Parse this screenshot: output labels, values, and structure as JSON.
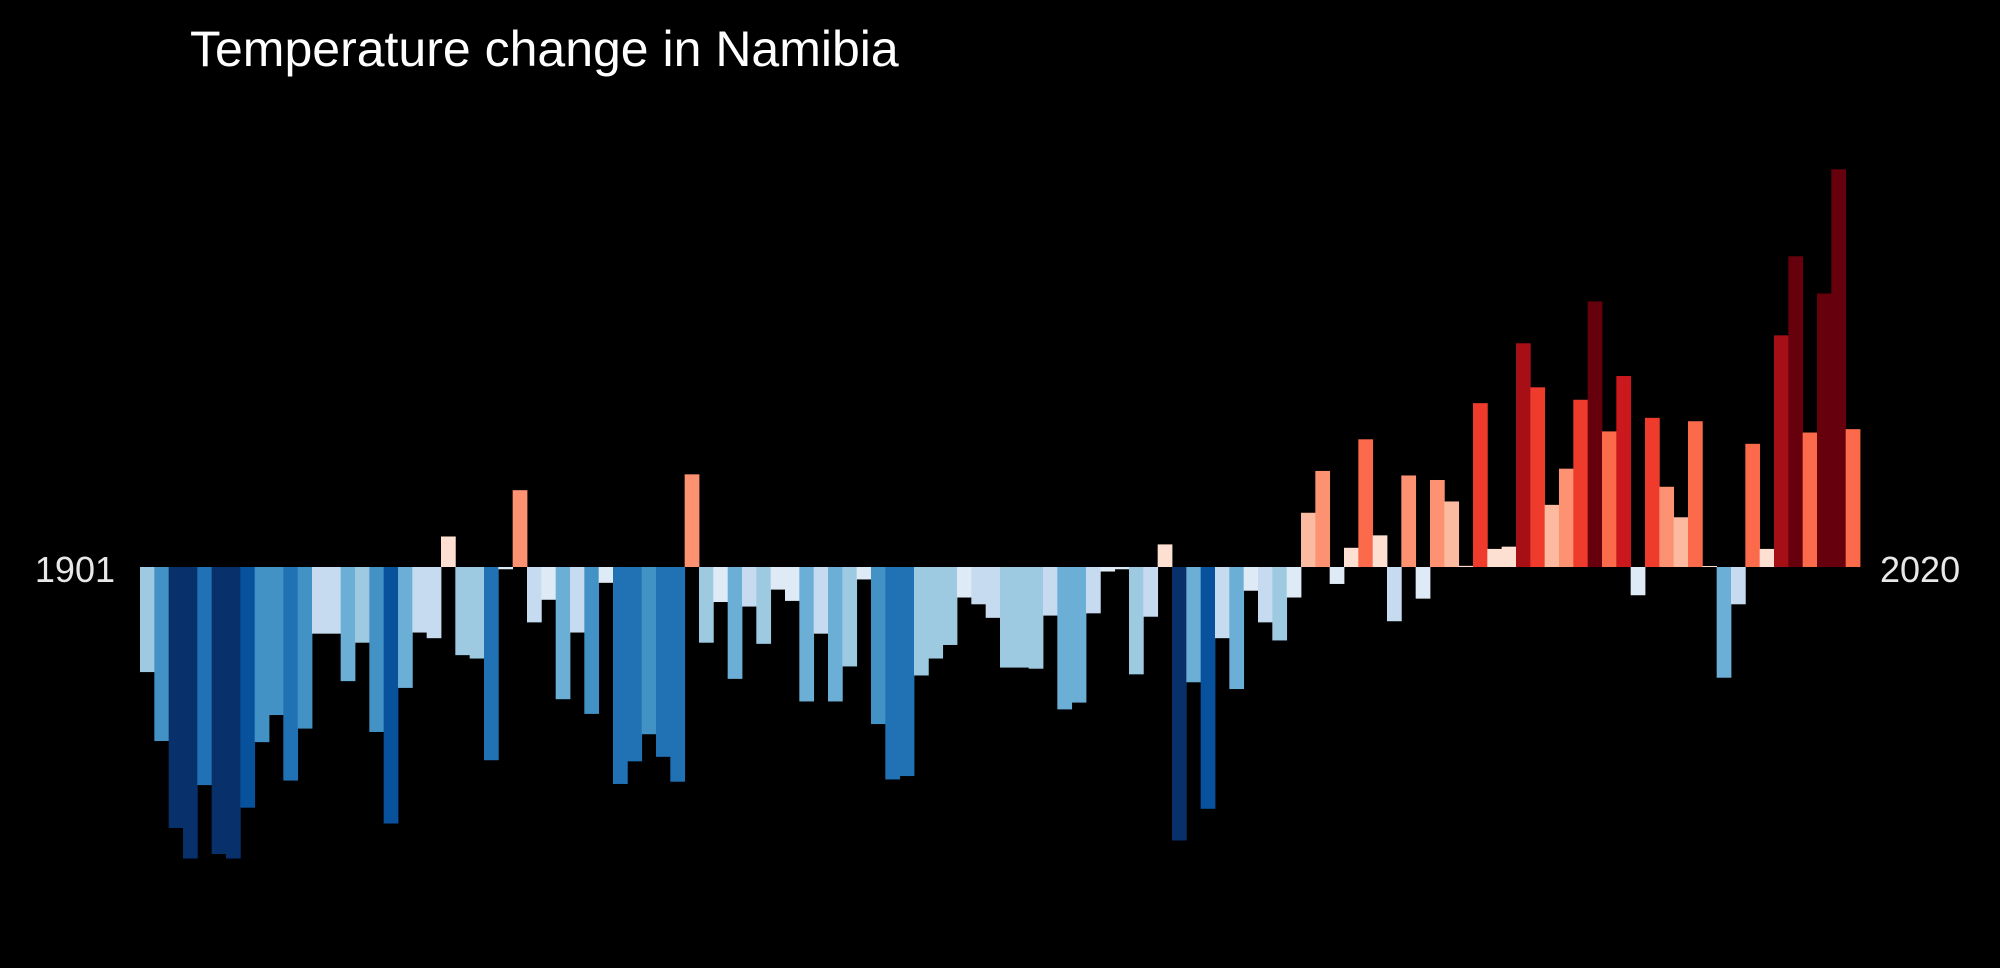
{
  "chart_data": {
    "type": "bar",
    "title": "Temperature change in Namibia",
    "start_label": "1901",
    "end_label": "2020",
    "x": {
      "start": 1901,
      "end": 2020
    },
    "ylim": [
      -2.6,
      3.55
    ],
    "legend": "none",
    "grid": false,
    "color_scale": {
      "neg": [
        "#deebf7",
        "#c6dbef",
        "#9ecae1",
        "#6baed6",
        "#4292c6",
        "#2171b5",
        "#08519c",
        "#08306b"
      ],
      "pos": [
        "#fee0d2",
        "#fcbba1",
        "#fc9272",
        "#fb6a4a",
        "#ef3b2c",
        "#cb181d",
        "#a50f15",
        "#67000d"
      ],
      "max_abs": 2.6
    },
    "values": [
      -0.93,
      -1.54,
      -2.31,
      -2.58,
      -1.93,
      -2.54,
      -2.58,
      -2.13,
      -1.55,
      -1.31,
      -1.89,
      -1.43,
      -0.59,
      -0.59,
      -1.01,
      -0.67,
      -1.46,
      -2.27,
      -1.07,
      -0.58,
      -0.63,
      0.27,
      -0.78,
      -0.81,
      -1.71,
      -0.02,
      0.68,
      -0.49,
      -0.29,
      -1.17,
      -0.58,
      -1.3,
      -0.14,
      -1.92,
      -1.72,
      -1.48,
      -1.68,
      -1.9,
      0.82,
      -0.67,
      -0.31,
      -0.99,
      -0.35,
      -0.68,
      -0.2,
      -0.3,
      -1.19,
      -0.59,
      -1.19,
      -0.88,
      -0.11,
      -1.39,
      -1.88,
      -1.85,
      -0.96,
      -0.81,
      -0.69,
      -0.27,
      -0.33,
      -0.45,
      -0.89,
      -0.89,
      -0.9,
      -0.43,
      -1.26,
      -1.2,
      -0.41,
      -0.04,
      -0.02,
      -0.95,
      -0.44,
      0.2,
      -2.42,
      -1.02,
      -2.14,
      -0.63,
      -1.08,
      -0.21,
      -0.49,
      -0.65,
      -0.27,
      0.48,
      0.85,
      -0.15,
      0.17,
      1.13,
      0.28,
      -0.48,
      0.81,
      -0.28,
      0.77,
      0.58,
      0.01,
      1.45,
      0.16,
      0.18,
      1.98,
      1.59,
      0.55,
      0.87,
      1.48,
      2.35,
      1.2,
      1.69,
      -0.25,
      1.32,
      0.71,
      0.44,
      1.29,
      0.0,
      -0.98,
      -0.33,
      1.09,
      0.16,
      2.05,
      2.75,
      1.19,
      2.42,
      3.52,
      1.22
    ]
  }
}
